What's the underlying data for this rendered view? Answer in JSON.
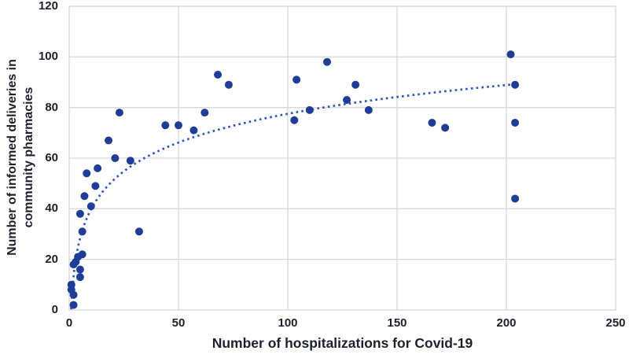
{
  "figure": {
    "background": "#ffffff",
    "plot_border_color": "#d9d9d9",
    "gridline_color": "#d9d9d9",
    "marker_color": "#1f3c96",
    "trend_color": "#2f55bc",
    "text_color": "#1b222c"
  },
  "chart_data": {
    "type": "scatter",
    "title": "",
    "xlabel": "Number of hospitalizations for Covid-19",
    "ylabel_lines": [
      "Number of informed deliveries in",
      "community pharmacies"
    ],
    "xlim": [
      0,
      250
    ],
    "ylim": [
      0,
      120
    ],
    "x_ticks": [
      0,
      50,
      100,
      150,
      200,
      250
    ],
    "y_ticks": [
      0,
      20,
      40,
      60,
      80,
      100,
      120
    ],
    "grid": true,
    "legend": "none",
    "points": [
      [
        1,
        8
      ],
      [
        1,
        10
      ],
      [
        2,
        2
      ],
      [
        2,
        6
      ],
      [
        2,
        18
      ],
      [
        3,
        19
      ],
      [
        4,
        21
      ],
      [
        5,
        13
      ],
      [
        5,
        16
      ],
      [
        5,
        38
      ],
      [
        6,
        22
      ],
      [
        6,
        31
      ],
      [
        7,
        45
      ],
      [
        8,
        54
      ],
      [
        10,
        41
      ],
      [
        12,
        49
      ],
      [
        13,
        56
      ],
      [
        18,
        67
      ],
      [
        21,
        60
      ],
      [
        23,
        78
      ],
      [
        28,
        59
      ],
      [
        32,
        31
      ],
      [
        44,
        73
      ],
      [
        50,
        73
      ],
      [
        57,
        71
      ],
      [
        62,
        78
      ],
      [
        68,
        93
      ],
      [
        73,
        89
      ],
      [
        103,
        75
      ],
      [
        104,
        91
      ],
      [
        110,
        79
      ],
      [
        118,
        98
      ],
      [
        127,
        83
      ],
      [
        131,
        89
      ],
      [
        137,
        79
      ],
      [
        166,
        74
      ],
      [
        172,
        72
      ],
      [
        202,
        101
      ],
      [
        204,
        44
      ],
      [
        204,
        74
      ],
      [
        204,
        89
      ]
    ],
    "trendline": {
      "style": "dotted",
      "type": "logarithmic",
      "a": 16.4,
      "b": 2.0,
      "x_start": 0.9,
      "x_end": 204
    }
  }
}
